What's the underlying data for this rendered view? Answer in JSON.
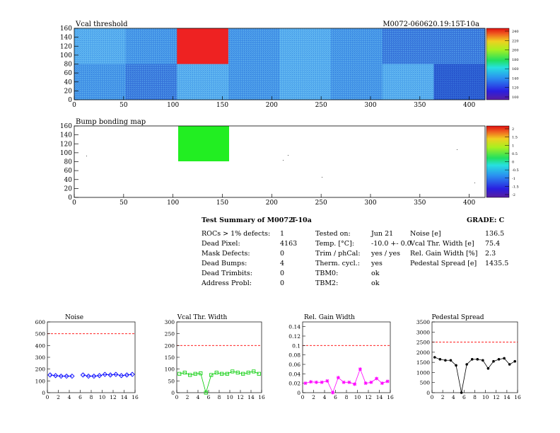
{
  "maps": {
    "vcal": {
      "title": "Vcal threshold",
      "module_id": "M0072-060620.19:15T-10a",
      "xlim": [
        0,
        416
      ],
      "ylim": [
        0,
        160
      ],
      "xticks": [
        0,
        50,
        100,
        150,
        200,
        250,
        300,
        350,
        400
      ],
      "yticks": [
        0,
        20,
        40,
        60,
        80,
        100,
        120,
        140,
        160
      ],
      "palette_ticks": [
        "240",
        "220",
        "200",
        "180",
        "160",
        "140",
        "120",
        "100"
      ]
    },
    "bump": {
      "title": "Bump bonding map",
      "xlim": [
        0,
        416
      ],
      "ylim": [
        0,
        160
      ],
      "xticks": [
        0,
        50,
        100,
        150,
        200,
        250,
        300,
        350,
        400
      ],
      "yticks": [
        0,
        20,
        40,
        60,
        80,
        100,
        120,
        140,
        160
      ],
      "palette_ticks": [
        "2",
        "1.5",
        "1",
        "0.5",
        "0",
        "-0.5",
        "-1",
        "-1.5",
        "-2"
      ]
    }
  },
  "summary": {
    "title": "Test Summary of M0072",
    "subtitle": "T-10a",
    "grade": "GRADE:  C",
    "col1": [
      {
        "label": "ROCs > 1% defects:",
        "value": "1"
      },
      {
        "label": "Dead Pixel:",
        "value": "4163"
      },
      {
        "label": "Mask Defects:",
        "value": "0"
      },
      {
        "label": "Dead Bumps:",
        "value": "4"
      },
      {
        "label": "Dead Trimbits:",
        "value": "0"
      },
      {
        "label": "Address Probl:",
        "value": "0"
      }
    ],
    "col2": [
      {
        "label": "Tested on:",
        "value": "Jun 21"
      },
      {
        "label": "Temp. [°C]:",
        "value": "-10.0 +- 0.0"
      },
      {
        "label": "Trim / phCal:",
        "value": "yes / yes"
      },
      {
        "label": "Therm. cycl.:",
        "value": "yes"
      },
      {
        "label": "TBM0:",
        "value": "ok"
      },
      {
        "label": "TBM2:",
        "value": "ok"
      }
    ],
    "col3": [
      {
        "label": "Noise [e]",
        "value": "136.5"
      },
      {
        "label": "Vcal Thr. Width [e]",
        "value": "75.4"
      },
      {
        "label": "Rel. Gain Width [%]",
        "value": "2.3"
      },
      {
        "label": "Pedestal Spread [e]",
        "value": "1435.5"
      }
    ]
  },
  "chart_data": [
    {
      "type": "line",
      "title": "Noise",
      "color": "#0000ff",
      "marker": "diamond",
      "x": [
        0,
        1,
        2,
        3,
        4,
        5,
        6,
        7,
        8,
        9,
        10,
        11,
        12,
        13,
        14,
        15
      ],
      "values": [
        150,
        145,
        140,
        140,
        140,
        null,
        150,
        140,
        140,
        145,
        155,
        150,
        155,
        145,
        150,
        155
      ],
      "xlim": [
        0,
        16
      ],
      "ylim": [
        0,
        600
      ],
      "yticks": [
        0,
        100,
        200,
        300,
        400,
        500,
        600
      ],
      "xticks": [
        0,
        2,
        4,
        6,
        8,
        10,
        12,
        14,
        16
      ],
      "threshold": 500,
      "threshold_color": "#ff0000"
    },
    {
      "type": "line",
      "title": "Vcal Thr. Width",
      "color": "#00cc00",
      "marker": "square",
      "x": [
        0,
        1,
        2,
        3,
        4,
        5,
        6,
        7,
        8,
        9,
        10,
        11,
        12,
        13,
        14,
        15
      ],
      "values": [
        80,
        85,
        75,
        80,
        82,
        0,
        75,
        85,
        80,
        80,
        90,
        85,
        80,
        85,
        90,
        80
      ],
      "xlim": [
        0,
        16
      ],
      "ylim": [
        0,
        300
      ],
      "yticks": [
        0,
        50,
        100,
        150,
        200,
        250,
        300
      ],
      "xticks": [
        0,
        2,
        4,
        6,
        8,
        10,
        12,
        14,
        16
      ],
      "threshold": 200,
      "threshold_color": "#ff0000"
    },
    {
      "type": "line",
      "title": "Rel. Gain Width",
      "color": "#ff00ff",
      "marker": "star",
      "x": [
        0,
        1,
        2,
        3,
        4,
        5,
        6,
        7,
        8,
        9,
        10,
        11,
        12,
        13,
        14,
        15
      ],
      "values": [
        0.02,
        0.023,
        0.022,
        0.022,
        0.025,
        0,
        0.032,
        0.022,
        0.022,
        0.018,
        0.05,
        0.02,
        0.022,
        0.03,
        0.02,
        0.024
      ],
      "xlim": [
        0,
        16
      ],
      "ylim": [
        0,
        0.15
      ],
      "yticks": [
        0,
        0.02,
        0.04,
        0.06,
        0.08,
        0.1,
        0.12,
        0.14
      ],
      "xticks": [
        0,
        2,
        4,
        6,
        8,
        10,
        12,
        14,
        16
      ],
      "threshold": 0.1,
      "threshold_color": "#ff0000"
    },
    {
      "type": "line",
      "title": "Pedestal Spread",
      "color": "#000000",
      "marker": "circle",
      "x": [
        0,
        1,
        2,
        3,
        4,
        5,
        6,
        7,
        8,
        9,
        10,
        11,
        12,
        13,
        14,
        15
      ],
      "values": [
        1750,
        1650,
        1600,
        1600,
        1350,
        0,
        1400,
        1650,
        1650,
        1600,
        1200,
        1550,
        1650,
        1700,
        1400,
        1550
      ],
      "xlim": [
        0,
        16
      ],
      "ylim": [
        0,
        3500
      ],
      "yticks": [
        0,
        500,
        1000,
        1500,
        2000,
        2500,
        3000,
        3500
      ],
      "xticks": [
        0,
        2,
        4,
        6,
        8,
        10,
        12,
        14,
        16
      ],
      "threshold": 2500,
      "threshold_color": "#ff0000"
    }
  ]
}
